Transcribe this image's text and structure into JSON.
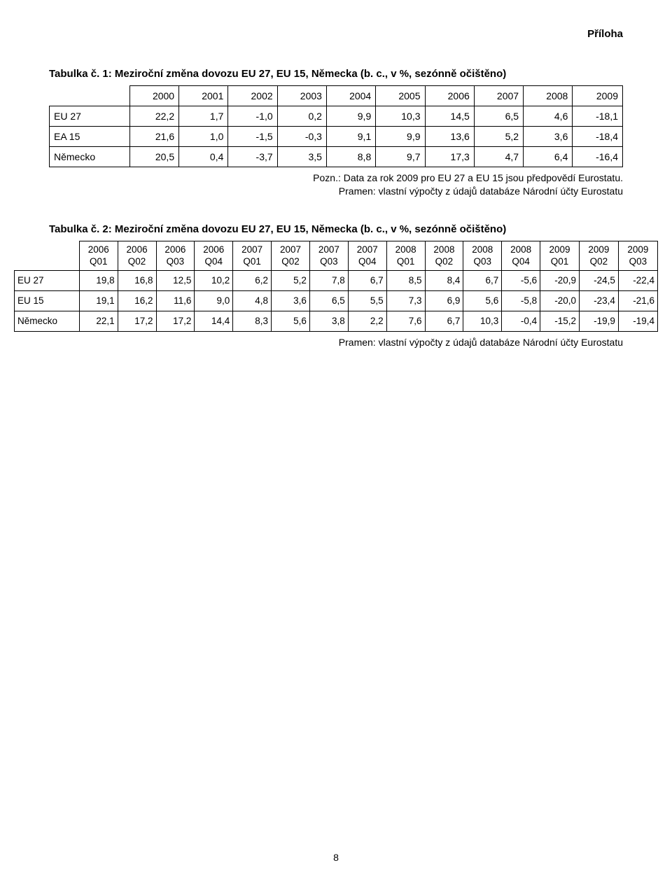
{
  "appendix_label": "Příloha",
  "page_number": "8",
  "table1": {
    "title": "Tabulka č. 1: Meziroční změna dovozu EU 27, EU 15, Německa (b. c., v %, sezónně očištěno)",
    "columns": [
      "2000",
      "2001",
      "2002",
      "2003",
      "2004",
      "2005",
      "2006",
      "2007",
      "2008",
      "2009"
    ],
    "rows": [
      {
        "label": "EU 27",
        "values": [
          "22,2",
          "1,7",
          "-1,0",
          "0,2",
          "9,9",
          "10,3",
          "14,5",
          "6,5",
          "4,6",
          "-18,1"
        ]
      },
      {
        "label": "EA 15",
        "values": [
          "21,6",
          "1,0",
          "-1,5",
          "-0,3",
          "9,1",
          "9,9",
          "13,6",
          "5,2",
          "3,6",
          "-18,4"
        ]
      },
      {
        "label": "Německo",
        "values": [
          "20,5",
          "0,4",
          "-3,7",
          "3,5",
          "8,8",
          "9,7",
          "17,3",
          "4,7",
          "6,4",
          "-16,4"
        ]
      }
    ],
    "note_line1": "Pozn.: Data za rok 2009 pro EU 27 a EU 15 jsou předpovědí Eurostatu.",
    "note_line2": "Pramen: vlastní výpočty z údajů databáze Národní účty Eurostatu"
  },
  "table2": {
    "title": "Tabulka č. 2: Meziroční změna dovozu EU 27, EU 15, Německa (b. c., v %, sezónně očištěno)",
    "columns": [
      {
        "y": "2006",
        "q": "Q01"
      },
      {
        "y": "2006",
        "q": "Q02"
      },
      {
        "y": "2006",
        "q": "Q03"
      },
      {
        "y": "2006",
        "q": "Q04"
      },
      {
        "y": "2007",
        "q": "Q01"
      },
      {
        "y": "2007",
        "q": "Q02"
      },
      {
        "y": "2007",
        "q": "Q03"
      },
      {
        "y": "2007",
        "q": "Q04"
      },
      {
        "y": "2008",
        "q": "Q01"
      },
      {
        "y": "2008",
        "q": "Q02"
      },
      {
        "y": "2008",
        "q": "Q03"
      },
      {
        "y": "2008",
        "q": "Q04"
      },
      {
        "y": "2009",
        "q": "Q01"
      },
      {
        "y": "2009",
        "q": "Q02"
      },
      {
        "y": "2009",
        "q": "Q03"
      }
    ],
    "rows": [
      {
        "label": "EU 27",
        "values": [
          "19,8",
          "16,8",
          "12,5",
          "10,2",
          "6,2",
          "5,2",
          "7,8",
          "6,7",
          "8,5",
          "8,4",
          "6,7",
          "-5,6",
          "-20,9",
          "-24,5",
          "-22,4"
        ]
      },
      {
        "label": "EU 15",
        "values": [
          "19,1",
          "16,2",
          "11,6",
          "9,0",
          "4,8",
          "3,6",
          "6,5",
          "5,5",
          "7,3",
          "6,9",
          "5,6",
          "-5,8",
          "-20,0",
          "-23,4",
          "-21,6"
        ]
      },
      {
        "label": "Německo",
        "values": [
          "22,1",
          "17,2",
          "17,2",
          "14,4",
          "8,3",
          "5,6",
          "3,8",
          "2,2",
          "7,6",
          "6,7",
          "10,3",
          "-0,4",
          "-15,2",
          "-19,9",
          "-19,4"
        ]
      }
    ],
    "note": "Pramen: vlastní výpočty z údajů databáze Národní účty Eurostatu"
  }
}
